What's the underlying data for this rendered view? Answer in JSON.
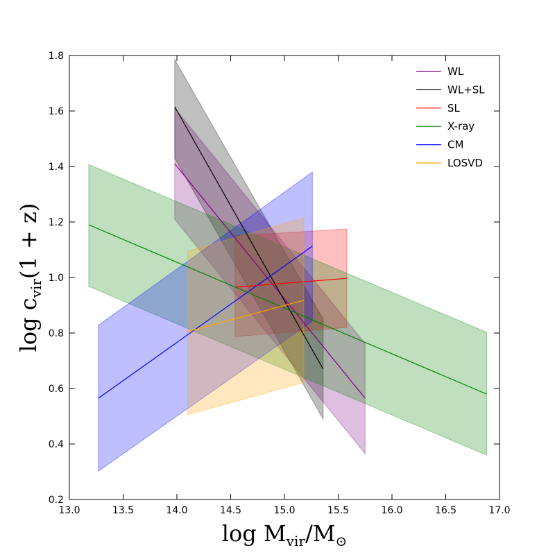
{
  "chart_data": {
    "type": "line",
    "title": "",
    "xlabel": {
      "main": "log M",
      "sub1": "vir",
      "mid": "/M",
      "sub2": "⊙"
    },
    "ylabel": {
      "main": "log c",
      "sub": "vir",
      "tail": "(1 + z)"
    },
    "xlim": [
      13.0,
      17.0
    ],
    "ylim": [
      0.2,
      1.8
    ],
    "xticks": [
      13.0,
      13.5,
      14.0,
      14.5,
      15.0,
      15.5,
      16.0,
      16.5,
      17.0
    ],
    "xtick_labels": [
      "13.0",
      "13.5",
      "14.0",
      "14.5",
      "15.0",
      "15.5",
      "16.0",
      "16.5",
      "17.0"
    ],
    "yticks": [
      0.2,
      0.4,
      0.6,
      0.8,
      1.0,
      1.2,
      1.4,
      1.6,
      1.8
    ],
    "ytick_labels": [
      "0.2",
      "0.4",
      "0.6",
      "0.8",
      "1.0",
      "1.2",
      "1.4",
      "1.6",
      "1.8"
    ],
    "legend_position": "top-right",
    "series": [
      {
        "name": "WL",
        "color": "#800080",
        "x": [
          13.98,
          15.75
        ],
        "y": [
          1.41,
          0.565
        ],
        "band_upper": [
          1.61,
          0.762
        ],
        "band_lower": [
          1.21,
          0.365
        ]
      },
      {
        "name": "WL+SL",
        "color": "#000000",
        "x": [
          13.98,
          15.36
        ],
        "y": [
          1.615,
          0.67
        ],
        "band_upper": [
          1.785,
          0.85
        ],
        "band_lower": [
          1.43,
          0.49
        ]
      },
      {
        "name": "SL",
        "color": "#ff0000",
        "x": [
          14.54,
          15.58
        ],
        "y": [
          0.965,
          0.997
        ],
        "band_upper": [
          1.15,
          1.175
        ],
        "band_lower": [
          0.787,
          0.82
        ]
      },
      {
        "name": "X-ray",
        "color": "#008000",
        "x": [
          13.18,
          16.88
        ],
        "y": [
          1.19,
          0.58
        ],
        "band_upper": [
          1.407,
          0.803
        ],
        "band_lower": [
          0.968,
          0.36
        ]
      },
      {
        "name": "CM",
        "color": "#0000ff",
        "x": [
          13.27,
          15.26
        ],
        "y": [
          0.565,
          1.113
        ],
        "band_upper": [
          0.828,
          1.38
        ],
        "band_lower": [
          0.302,
          0.843
        ]
      },
      {
        "name": "LOSVD",
        "color": "#ffa500",
        "x": [
          14.1,
          15.18
        ],
        "y": [
          0.805,
          0.918
        ],
        "band_upper": [
          1.095,
          1.215
        ],
        "band_lower": [
          0.505,
          0.622
        ]
      }
    ]
  }
}
